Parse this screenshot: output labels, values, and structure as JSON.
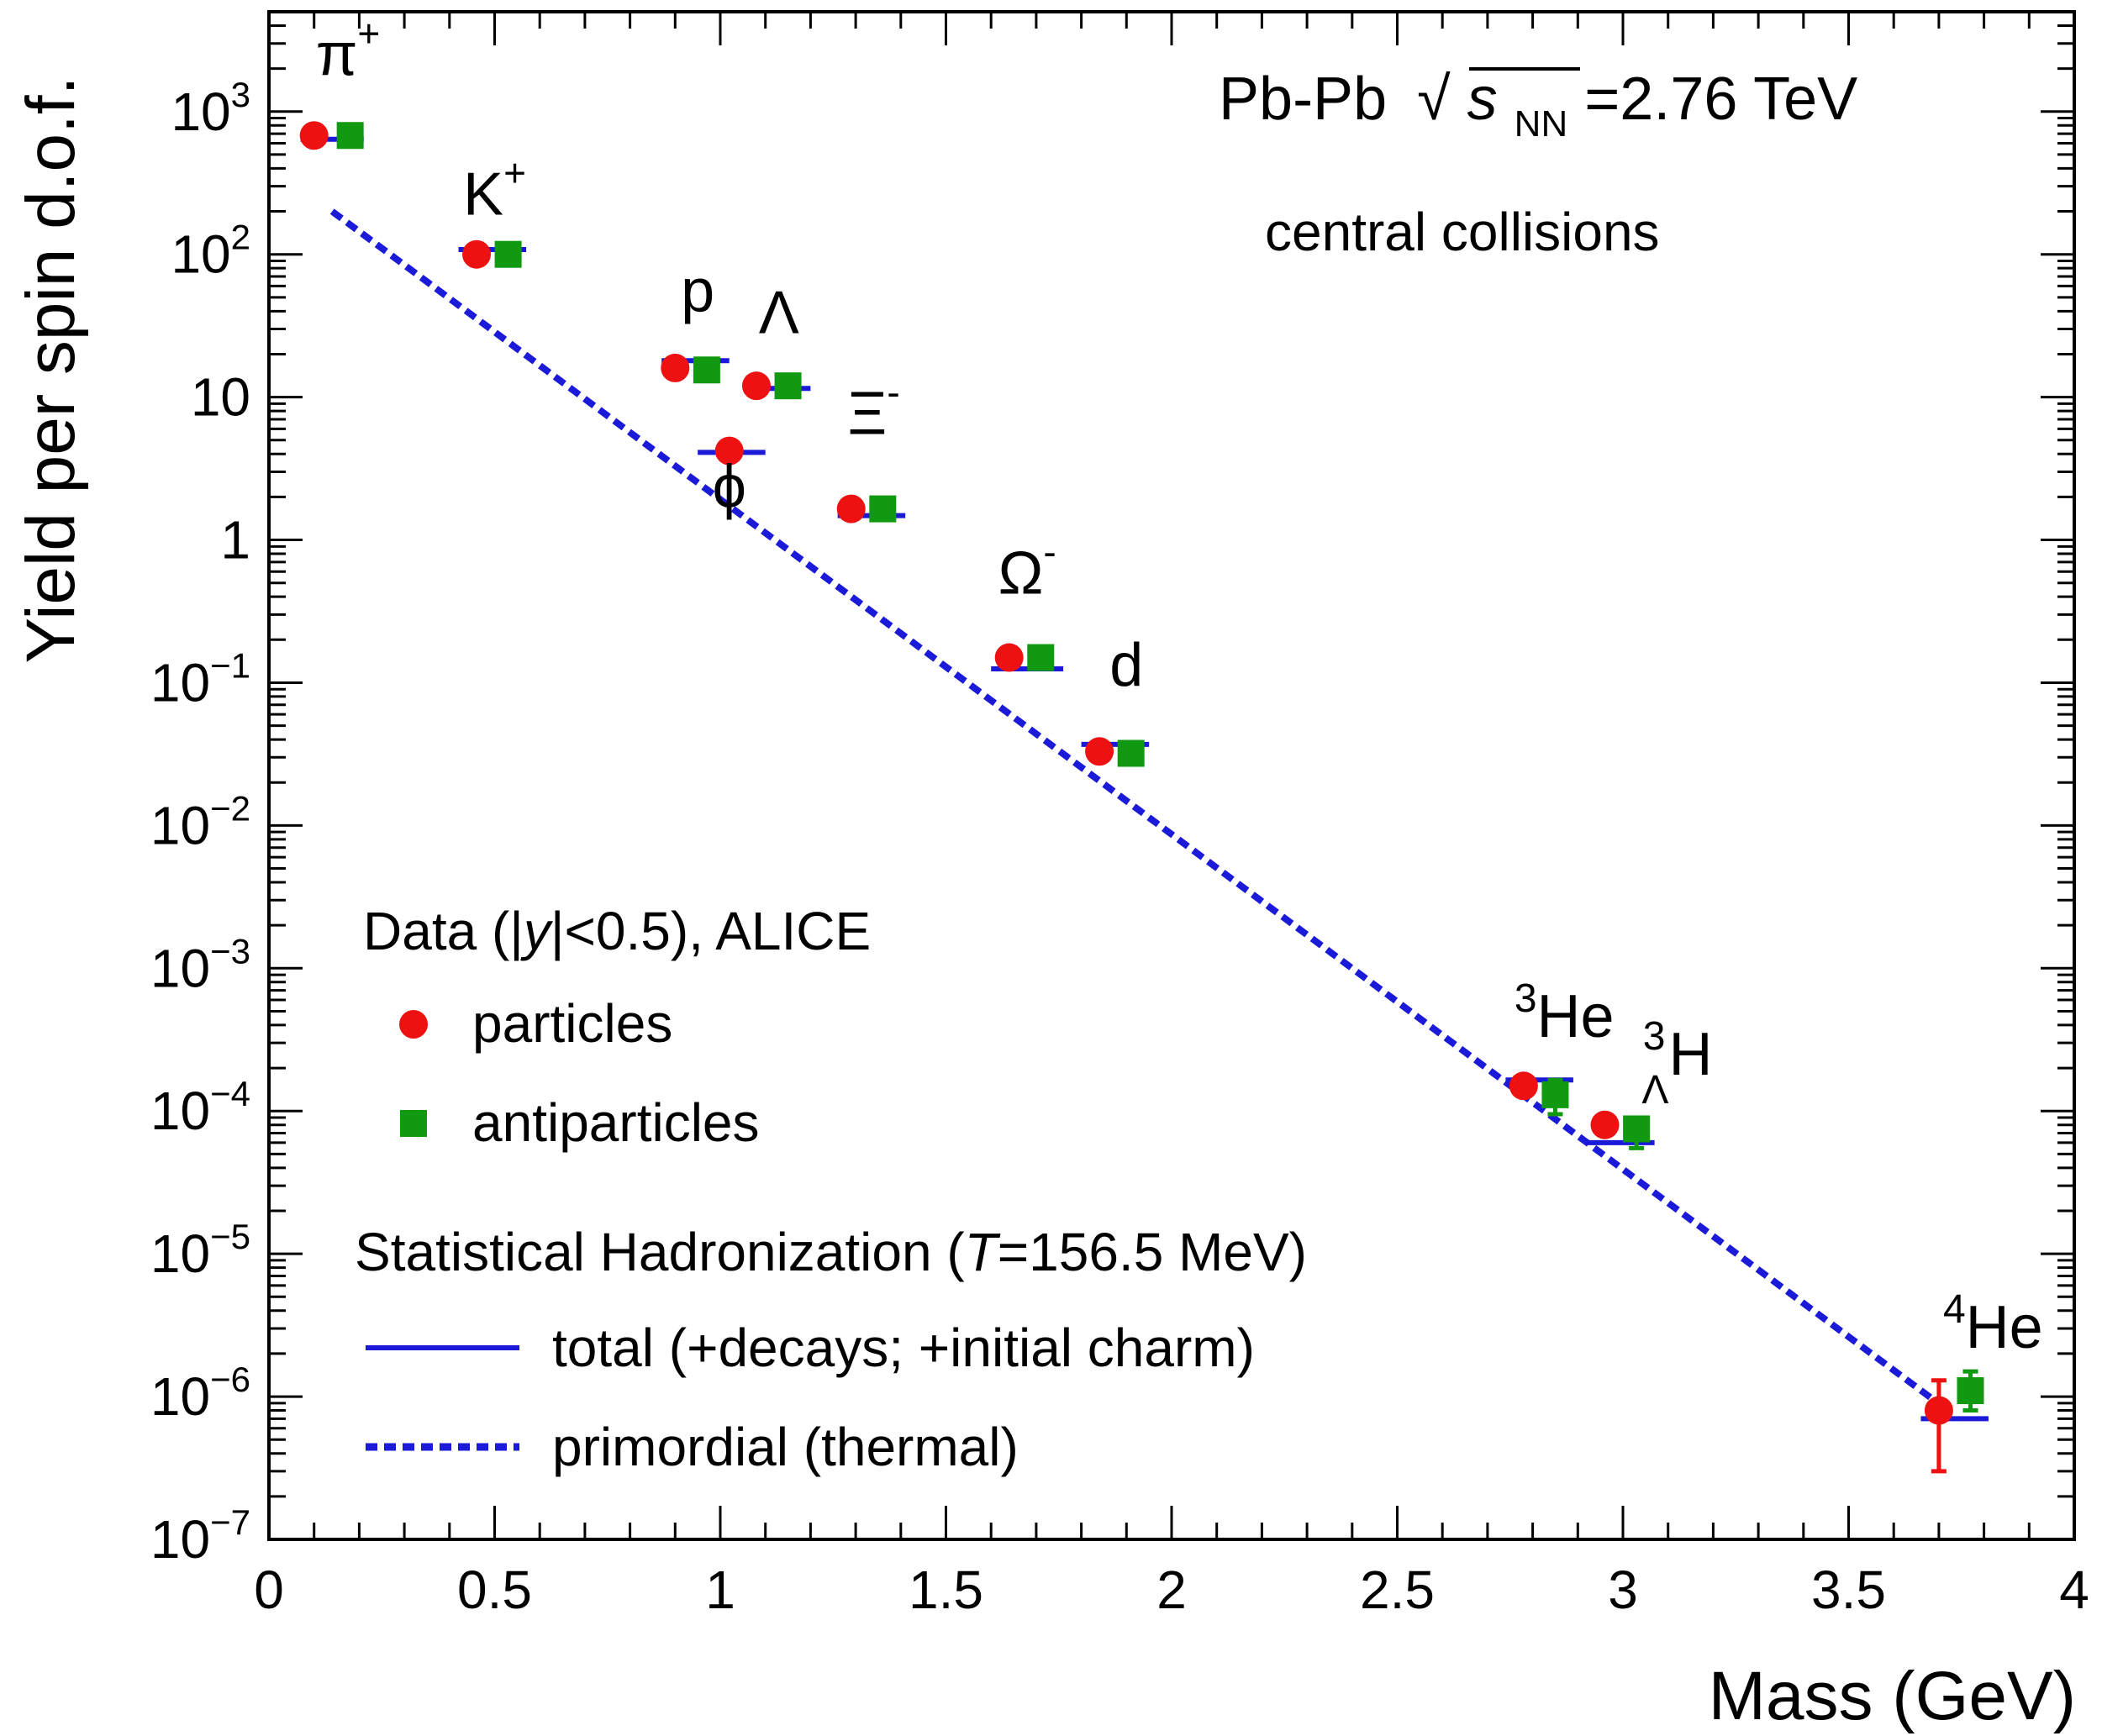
{
  "chart_data": {
    "type": "scatter",
    "title": "",
    "xlabel": "Mass (GeV)",
    "ylabel": "Yield per spin d.o.f.",
    "xlim": [
      0,
      4
    ],
    "ylim": [
      1e-07,
      5000
    ],
    "yscale": "log",
    "grid": false,
    "x_ticks": [
      {
        "v": 0,
        "label": "0"
      },
      {
        "v": 0.5,
        "label": "0.5"
      },
      {
        "v": 1,
        "label": "1"
      },
      {
        "v": 1.5,
        "label": "1.5"
      },
      {
        "v": 2,
        "label": "2"
      },
      {
        "v": 2.5,
        "label": "2.5"
      },
      {
        "v": 3,
        "label": "3"
      },
      {
        "v": 3.5,
        "label": "3.5"
      },
      {
        "v": 4,
        "label": "4"
      }
    ],
    "y_ticks": [
      {
        "v": 1000,
        "base": "10",
        "exp": "3"
      },
      {
        "v": 100,
        "base": "10",
        "exp": "2"
      },
      {
        "v": 10,
        "base": "10",
        "exp": ""
      },
      {
        "v": 1,
        "base": "1",
        "exp": ""
      },
      {
        "v": 0.1,
        "base": "10",
        "exp": "−1"
      },
      {
        "v": 0.01,
        "base": "10",
        "exp": "−2"
      },
      {
        "v": 0.001,
        "base": "10",
        "exp": "−3"
      },
      {
        "v": 0.0001,
        "base": "10",
        "exp": "−4"
      },
      {
        "v": 1e-05,
        "base": "10",
        "exp": "−5"
      },
      {
        "v": 1e-06,
        "base": "10",
        "exp": "−6"
      },
      {
        "v": 1e-07,
        "base": "10",
        "exp": "−7"
      }
    ],
    "annotations": {
      "system": "Pb-Pb",
      "sqrt_symbol": "√",
      "s_var": "s",
      "nn_sub": "NN",
      "energy": "=2.76 TeV",
      "centrality": "central collisions"
    },
    "colors": {
      "particles": "#ee1111",
      "antiparticles": "#119911",
      "model": "#1a1ad8"
    },
    "series": [
      {
        "name": "particles",
        "marker": "circle",
        "points": [
          {
            "x": 0.1,
            "y": 680
          },
          {
            "x": 0.46,
            "y": 100
          },
          {
            "x": 0.9,
            "y": 16
          },
          {
            "x": 1.02,
            "y": 4.2
          },
          {
            "x": 1.08,
            "y": 12
          },
          {
            "x": 1.29,
            "y": 1.65
          },
          {
            "x": 1.64,
            "y": 0.15
          },
          {
            "x": 1.84,
            "y": 0.033
          },
          {
            "x": 2.78,
            "y": 0.00015
          },
          {
            "x": 2.96,
            "y": 8e-05
          },
          {
            "x": 3.7,
            "y": 8e-07,
            "err_lo": 3e-07,
            "err_hi": 1.3e-06
          }
        ]
      },
      {
        "name": "antiparticles",
        "marker": "square",
        "points": [
          {
            "x": 0.18,
            "y": 680
          },
          {
            "x": 0.53,
            "y": 100
          },
          {
            "x": 0.97,
            "y": 15.5
          },
          {
            "x": 1.15,
            "y": 12
          },
          {
            "x": 1.36,
            "y": 1.65
          },
          {
            "x": 1.71,
            "y": 0.15
          },
          {
            "x": 1.91,
            "y": 0.032
          },
          {
            "x": 2.85,
            "y": 0.00013,
            "err_lo": 9.5e-05,
            "err_hi": 0.000165
          },
          {
            "x": 3.03,
            "y": 7.5e-05,
            "err_lo": 5.5e-05,
            "err_hi": 9e-05
          },
          {
            "x": 3.77,
            "y": 1.1e-06,
            "err_lo": 8e-07,
            "err_hi": 1.5e-06
          }
        ]
      },
      {
        "name": "total (+decays; +initial charm)",
        "type": "segments",
        "segments": [
          {
            "x0": 0.07,
            "x1": 0.21,
            "y": 640
          },
          {
            "x0": 0.42,
            "x1": 0.57,
            "y": 108
          },
          {
            "x0": 0.87,
            "x1": 1.02,
            "y": 18
          },
          {
            "x0": 0.95,
            "x1": 1.1,
            "y": 4.1
          },
          {
            "x0": 1.08,
            "x1": 1.2,
            "y": 11.5
          },
          {
            "x0": 1.26,
            "x1": 1.41,
            "y": 1.48
          },
          {
            "x0": 1.6,
            "x1": 1.76,
            "y": 0.125
          },
          {
            "x0": 1.8,
            "x1": 1.95,
            "y": 0.037
          },
          {
            "x0": 2.74,
            "x1": 2.89,
            "y": 0.000165
          },
          {
            "x0": 2.92,
            "x1": 3.07,
            "y": 6e-05
          },
          {
            "x0": 3.66,
            "x1": 3.81,
            "y": 7e-07
          }
        ]
      },
      {
        "name": "primordial (thermal)",
        "type": "line",
        "dashed": true,
        "x": [
          0.14,
          3.72
        ],
        "y": [
          200,
          8e-07
        ]
      }
    ],
    "particle_labels": [
      {
        "base": "π",
        "sup": "+",
        "x": 0.175,
        "y": 1800
      },
      {
        "base": "K",
        "sup": "+",
        "x": 0.5,
        "y": 190
      },
      {
        "base": "p",
        "sup": "",
        "x": 0.95,
        "y": 40
      },
      {
        "base": "Λ",
        "sup": "",
        "x": 1.13,
        "y": 28
      },
      {
        "base": "ϕ",
        "sup": "",
        "x": 1.02,
        "y": 1.7
      },
      {
        "base": "Ξ",
        "sup": "-",
        "x": 1.34,
        "y": 5.5
      },
      {
        "base": "Ω",
        "sup": "-",
        "x": 1.68,
        "y": 0.42
      },
      {
        "base": "d",
        "sup": "",
        "x": 1.9,
        "y": 0.095
      },
      {
        "base": "He",
        "presup": "3",
        "x": 2.87,
        "y": 0.00033
      },
      {
        "base": "H",
        "presup": "3",
        "presub": "Λ",
        "x": 3.12,
        "y": 0.00018
      },
      {
        "base": "He",
        "presup": "4",
        "x": 3.82,
        "y": 2.2e-06
      }
    ]
  },
  "legend": {
    "data_header_pre": "Data (|",
    "data_header_var": "y",
    "data_header_post": "|<0.5), ALICE",
    "particles": "particles",
    "antiparticles": "antiparticles",
    "model_header_pre": "Statistical Hadronization (",
    "model_header_var": "T",
    "model_header_post": "=156.5 MeV)",
    "total": "total (+decays; +initial charm)",
    "primordial": "primordial (thermal)"
  }
}
